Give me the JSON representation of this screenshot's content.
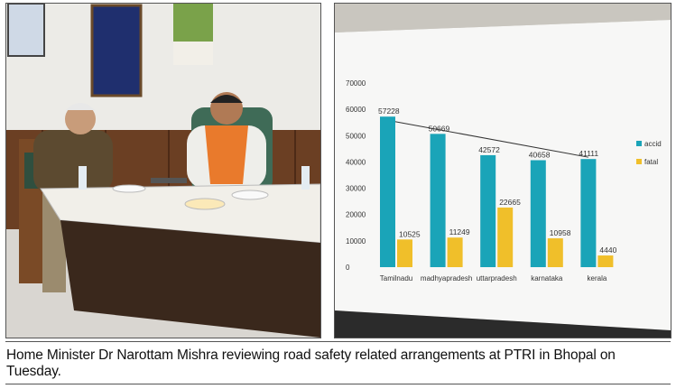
{
  "caption": "Home Minister Dr Narottam Mishra reviewing road safety related arrangements at PTRI in Bhopal on Tuesday.",
  "left_photo": {
    "description_icon": "meeting-photo"
  },
  "chart_data": {
    "type": "bar",
    "categories": [
      "Tamilnadu",
      "madhyapradesh",
      "uttarpradesh",
      "karnataka",
      "kerala"
    ],
    "series": [
      {
        "name": "accid",
        "values": [
          57228,
          50669,
          42572,
          40658,
          41111
        ],
        "color": "#1aa4b8"
      },
      {
        "name": "fatal",
        "values": [
          10525,
          11249,
          22665,
          10958,
          4440
        ],
        "color": "#f0bf2a"
      }
    ],
    "ylim": [
      0,
      70000
    ],
    "yticks": [
      "0",
      "10000",
      "20000",
      "30000",
      "40000",
      "50000",
      "60000",
      "70000"
    ],
    "ytick_values": [
      0,
      10000,
      20000,
      30000,
      40000,
      50000,
      60000,
      70000
    ],
    "data_labels": {
      "accid": [
        "57228",
        "50669",
        "42572",
        "40658",
        "41111"
      ],
      "fatal": [
        "10525",
        "11249",
        "22665",
        "10958",
        "4440"
      ]
    },
    "trendline": true,
    "grid": false,
    "legend": "right"
  }
}
